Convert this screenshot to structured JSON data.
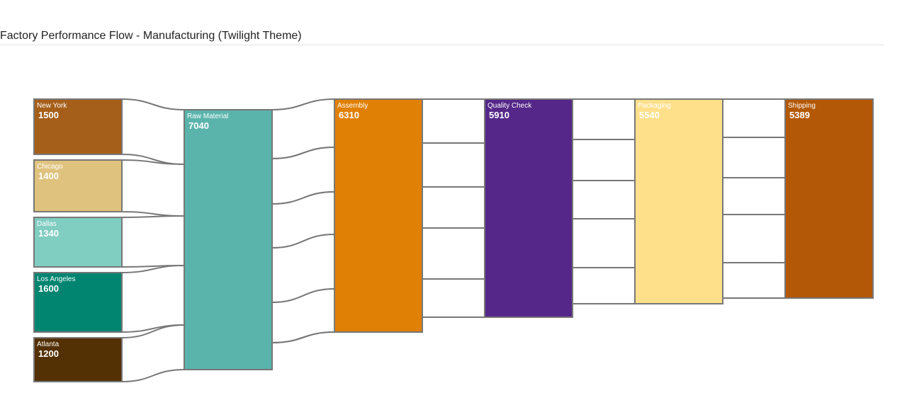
{
  "title": "Factory Performance Flow - Manufacturing (Twilight Theme)",
  "chart_data": {
    "type": "sankey",
    "title": "Factory Performance Flow - Manufacturing (Twilight Theme)",
    "nodes": [
      {
        "id": "new-york",
        "name": "New York",
        "value": "1500",
        "color": "#a65f1a",
        "text_color": "#ffffff"
      },
      {
        "id": "chicago",
        "name": "Chicago",
        "value": "1400",
        "color": "#dfc27d",
        "text_color": "#ffffff"
      },
      {
        "id": "dallas",
        "name": "Dallas",
        "value": "1340",
        "color": "#80cdc1",
        "text_color": "#ffffff"
      },
      {
        "id": "los-angeles",
        "name": "Los Angeles",
        "value": "1600",
        "color": "#018571",
        "text_color": "#ffffff"
      },
      {
        "id": "atlanta",
        "name": "Atlanta",
        "value": "1200",
        "color": "#543005",
        "text_color": "#ffffff"
      },
      {
        "id": "raw-material",
        "name": "Raw Material",
        "value": "7040",
        "color": "#5ab4ac",
        "text_color": "#ffffff"
      },
      {
        "id": "assembly",
        "name": "Assembly",
        "value": "6310",
        "color": "#e08005",
        "text_color": "#ffffff"
      },
      {
        "id": "quality-check",
        "name": "Quality Check",
        "value": "5910",
        "color": "#542788",
        "text_color": "#ffffff"
      },
      {
        "id": "packaging",
        "name": "Packaging",
        "value": "5540",
        "color": "#fee08b",
        "text_color": "#ffffff"
      },
      {
        "id": "shipping",
        "name": "Shipping",
        "value": "5389",
        "color": "#b35806",
        "text_color": "#ffffff"
      }
    ],
    "links": [
      {
        "source": "new-york",
        "target": "raw-material",
        "value": 1500
      },
      {
        "source": "chicago",
        "target": "raw-material",
        "value": 1400
      },
      {
        "source": "dallas",
        "target": "raw-material",
        "value": 1340
      },
      {
        "source": "los-angeles",
        "target": "raw-material",
        "value": 1600
      },
      {
        "source": "atlanta",
        "target": "raw-material",
        "value": 1200
      },
      {
        "source": "raw-material",
        "target": "assembly",
        "value": 6310
      },
      {
        "source": "assembly",
        "target": "quality-check",
        "value": 5910
      },
      {
        "source": "quality-check",
        "target": "packaging",
        "value": 5540
      },
      {
        "source": "packaging",
        "target": "shipping",
        "value": 5389
      }
    ],
    "link_style": {
      "fill": "#ffffff",
      "stroke": "#777777"
    },
    "node_stroke": "#777777"
  }
}
